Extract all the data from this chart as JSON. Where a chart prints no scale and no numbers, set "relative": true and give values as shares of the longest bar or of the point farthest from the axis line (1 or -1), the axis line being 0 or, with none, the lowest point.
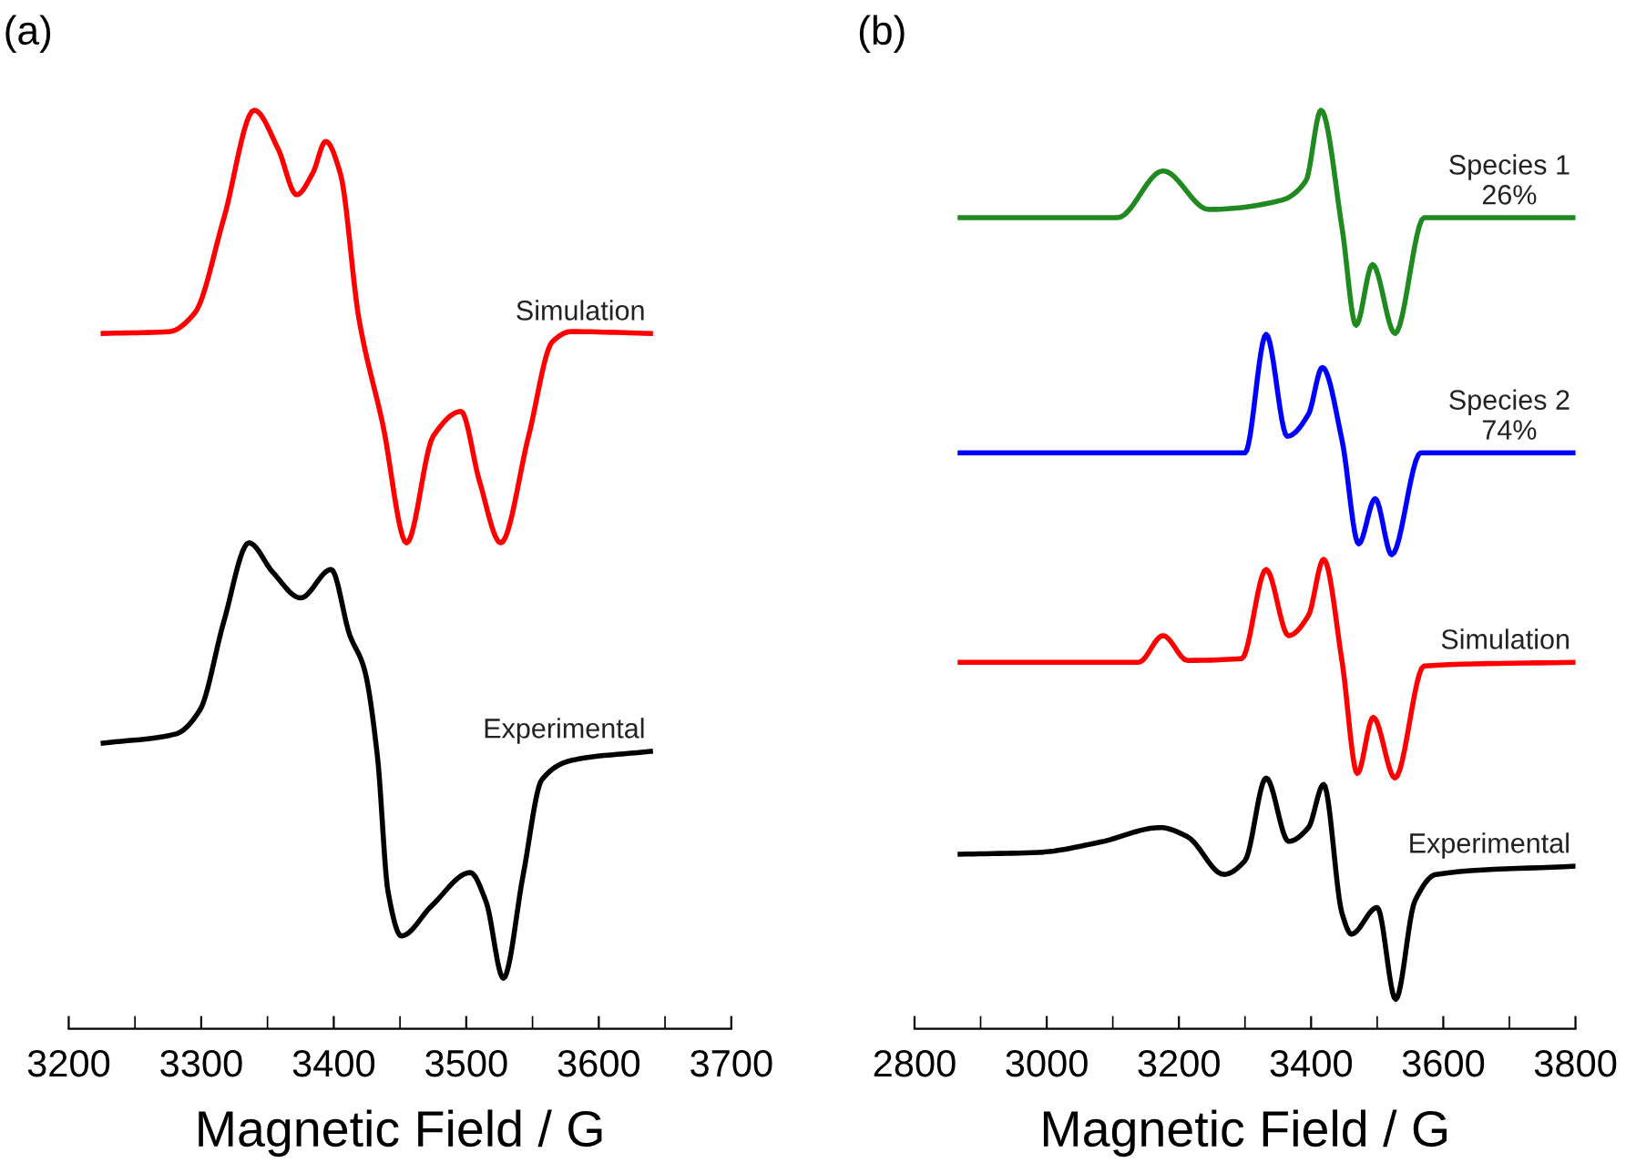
{
  "chart_data": [
    {
      "type": "line",
      "title": "(a)",
      "xlabel": "Magnetic Field / G",
      "relative": true,
      "tick_labels": "x",
      "xlim": [
        3200,
        3700
      ],
      "xticks": [
        3200,
        {
          "value": 3250,
          "label": null
        },
        3300,
        {
          "value": 3350,
          "label": null
        },
        3400,
        {
          "value": 3450,
          "label": null
        },
        3500,
        {
          "value": 3550,
          "label": null
        },
        3600,
        {
          "value": 3650,
          "label": null
        },
        3700
      ],
      "series": [
        {
          "name": "Simulation",
          "color": "#ff0000",
          "x": [
            3226,
            3276,
            3295,
            3317,
            3340,
            3358,
            3372,
            3384,
            3394,
            3405,
            3419,
            3437,
            3455,
            3475,
            3496,
            3510,
            3526,
            3547,
            3565,
            3579,
            3639
          ],
          "values": [
            0.757,
            0.759,
            0.779,
            0.882,
            1.0,
            0.958,
            0.908,
            0.931,
            0.966,
            0.931,
            0.773,
            0.658,
            0.529,
            0.645,
            0.672,
            0.596,
            0.529,
            0.645,
            0.748,
            0.759,
            0.757
          ]
        },
        {
          "name": "Experimental",
          "color": "#000000",
          "x": [
            3226,
            3281,
            3299,
            3317,
            3336,
            3354,
            3375,
            3398,
            3412,
            3423,
            3433,
            3441,
            3451,
            3474,
            3503,
            3515,
            3528,
            3543,
            3557,
            3579,
            3639
          ],
          "values": [
            0.311,
            0.321,
            0.347,
            0.443,
            0.529,
            0.497,
            0.469,
            0.5,
            0.429,
            0.392,
            0.296,
            0.149,
            0.101,
            0.134,
            0.17,
            0.138,
            0.055,
            0.168,
            0.271,
            0.292,
            0.302
          ]
        }
      ]
    },
    {
      "type": "line",
      "title": "(b)",
      "xlabel": "Magnetic Field / G",
      "relative": true,
      "tick_labels": "x",
      "xlim": [
        2800,
        3800
      ],
      "xticks": [
        2800,
        {
          "value": 2900,
          "label": null
        },
        3000,
        {
          "value": 3100,
          "label": null
        },
        3200,
        {
          "value": 3300,
          "label": null
        },
        3400,
        {
          "value": 3500,
          "label": null
        },
        3600,
        {
          "value": 3700,
          "label": null
        },
        3800
      ],
      "series": [
        {
          "name": "Species 1\n26%",
          "color": "#1f8a1f",
          "x": [
            2869,
            3107,
            3176,
            3245,
            3355,
            3392,
            3415,
            3447,
            3468,
            3493,
            3527,
            3571,
            3800
          ],
          "values": [
            0.883,
            0.883,
            0.934,
            0.892,
            0.902,
            0.923,
            1.0,
            0.871,
            0.766,
            0.832,
            0.757,
            0.883,
            0.883
          ]
        },
        {
          "name": "Species 2\n74%",
          "color": "#0000ff",
          "x": [
            2869,
            3300,
            3332,
            3364,
            3396,
            3417,
            3447,
            3472,
            3497,
            3522,
            3566,
            3800
          ],
          "values": [
            0.627,
            0.627,
            0.756,
            0.645,
            0.669,
            0.72,
            0.64,
            0.528,
            0.577,
            0.516,
            0.627,
            0.627
          ]
        },
        {
          "name": "Simulation",
          "color": "#ff0000",
          "x": [
            2869,
            3139,
            3176,
            3213,
            3295,
            3332,
            3366,
            3396,
            3419,
            3447,
            3470,
            3494,
            3527,
            3571,
            3800
          ],
          "values": [
            0.399,
            0.399,
            0.428,
            0.401,
            0.403,
            0.5,
            0.428,
            0.45,
            0.511,
            0.399,
            0.278,
            0.339,
            0.273,
            0.395,
            0.399
          ]
        },
        {
          "name": "Experimental",
          "color": "#000000",
          "x": [
            2869,
            2988,
            3080,
            3172,
            3213,
            3268,
            3300,
            3332,
            3366,
            3396,
            3419,
            3447,
            3461,
            3500,
            3528,
            3557,
            3589,
            3800
          ],
          "values": [
            0.19,
            0.192,
            0.203,
            0.219,
            0.209,
            0.168,
            0.183,
            0.273,
            0.204,
            0.219,
            0.266,
            0.125,
            0.103,
            0.132,
            0.032,
            0.139,
            0.168,
            0.177
          ]
        }
      ]
    }
  ]
}
